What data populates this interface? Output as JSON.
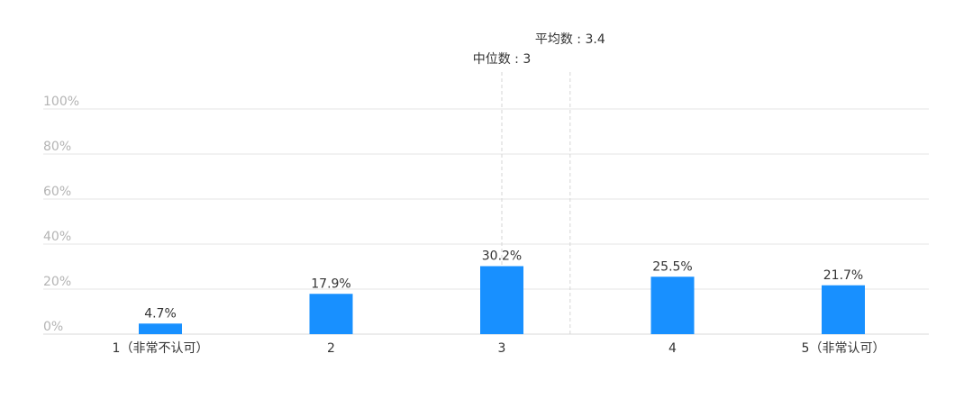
{
  "chart_data": {
    "type": "bar",
    "categories": [
      "1（非常不认可）",
      "2",
      "3",
      "4",
      "5（非常认可）"
    ],
    "values": [
      4.7,
      17.9,
      30.2,
      25.5,
      21.7
    ],
    "value_labels": [
      "4.7%",
      "17.9%",
      "30.2%",
      "25.5%",
      "21.7%"
    ],
    "y_ticks": [
      "0%",
      "20%",
      "40%",
      "60%",
      "80%",
      "100%"
    ],
    "ylim": [
      0,
      100
    ],
    "grid": true,
    "bar_color": "#1890ff",
    "grid_color": "#e6e6e6",
    "reference_lines": [
      {
        "label": "中位数 : 3",
        "x": 3
      },
      {
        "label": "平均数 : 3.4",
        "x": 3.4
      }
    ]
  }
}
